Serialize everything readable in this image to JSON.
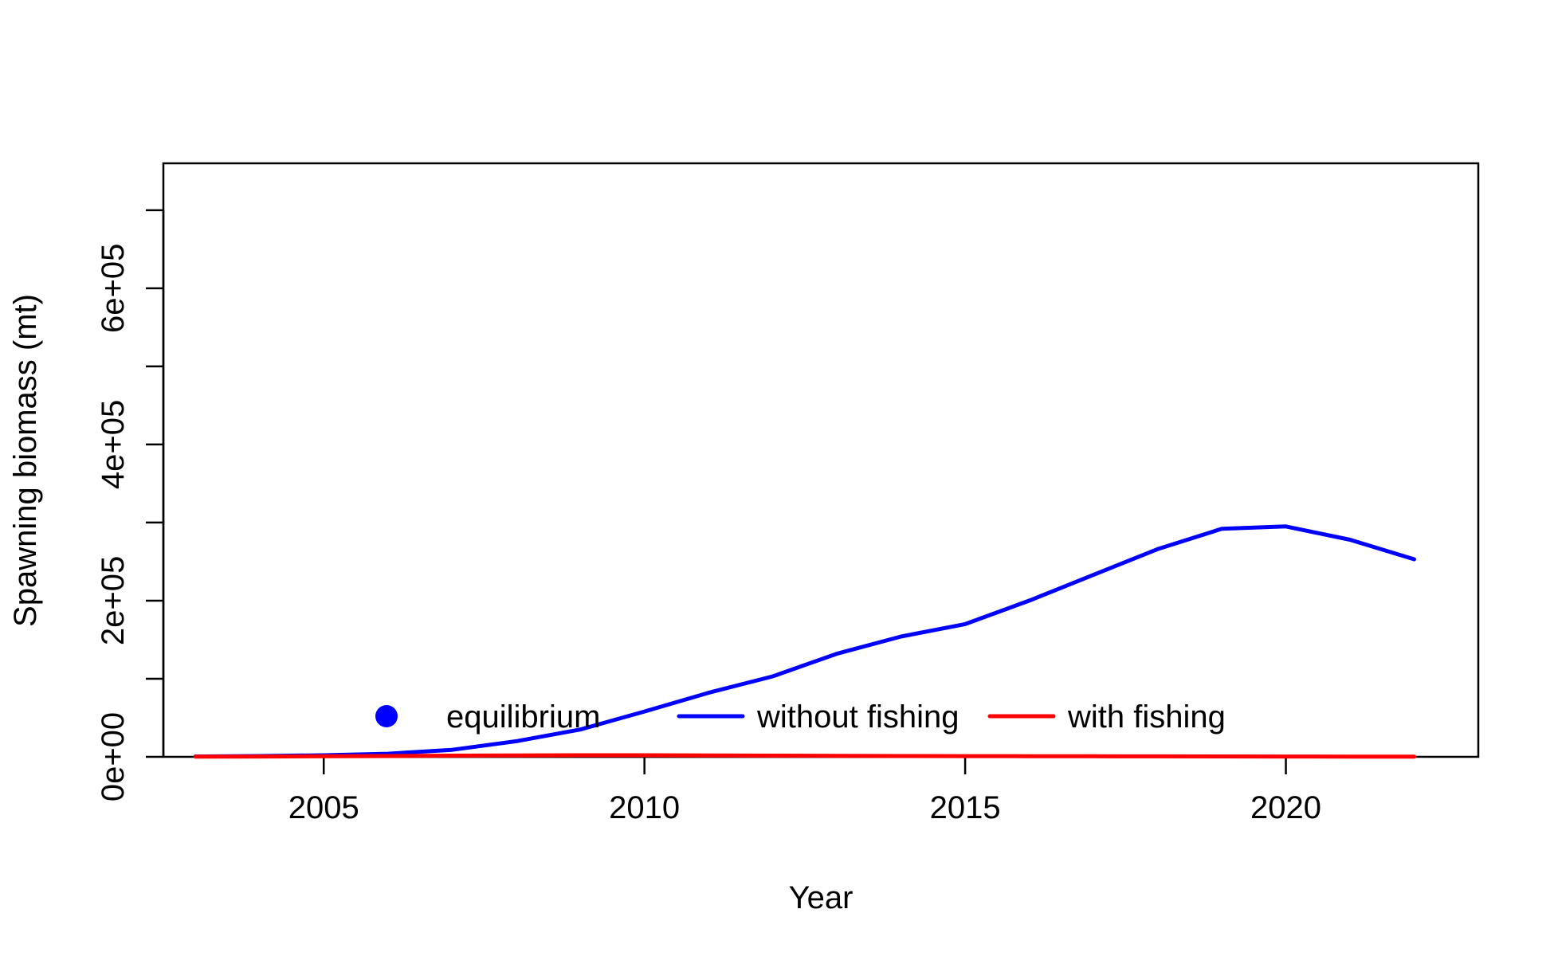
{
  "chart_data": {
    "type": "line",
    "title": "",
    "xlabel": "Year",
    "ylabel": "Spawning biomass (mt)",
    "xlim": [
      2002.5,
      2023.0
    ],
    "ylim": [
      0,
      760000
    ],
    "x_ticks": [
      2005,
      2010,
      2015,
      2020
    ],
    "x_tick_labels": [
      "2005",
      "2010",
      "2015",
      "2020"
    ],
    "y_ticks": [
      0,
      100000,
      200000,
      300000,
      400000,
      500000,
      600000,
      700000
    ],
    "y_tick_labels": [
      "0e+00",
      "",
      "2e+05",
      "",
      "4e+05",
      "",
      "6e+05",
      ""
    ],
    "grid": false,
    "legend_position": "bottom",
    "x": [
      2003,
      2004,
      2005,
      2006,
      2007,
      2008,
      2009,
      2010,
      2011,
      2012,
      2013,
      2014,
      2015,
      2016,
      2017,
      2018,
      2019,
      2020,
      2021,
      2022
    ],
    "series": [
      {
        "name": "without fishing",
        "color": "#0000ff",
        "values": [
          500,
          1000,
          2000,
          4000,
          9000,
          20000,
          35000,
          58000,
          82000,
          103000,
          132000,
          154000,
          170000,
          200000,
          233000,
          266000,
          292000,
          295000,
          278000,
          253000
        ]
      },
      {
        "name": "with fishing",
        "color": "#ff0000",
        "values": [
          200,
          400,
          700,
          1000,
          1500,
          1800,
          2000,
          2000,
          1800,
          1500,
          1200,
          1000,
          900,
          800,
          700,
          600,
          500,
          400,
          300,
          200
        ]
      }
    ],
    "legend": [
      {
        "label": "equilibrium",
        "color": "#0000ff",
        "marker": "dot"
      },
      {
        "label": "without fishing",
        "color": "#0000ff",
        "marker": "line"
      },
      {
        "label": "with fishing",
        "color": "#ff0000",
        "marker": "line"
      }
    ]
  }
}
